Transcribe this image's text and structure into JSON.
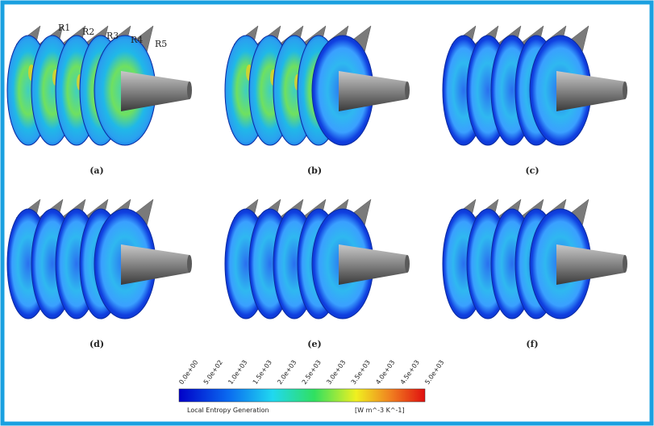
{
  "figure": {
    "panels": [
      {
        "label": "(a)"
      },
      {
        "label": "(b)"
      },
      {
        "label": "(c)"
      },
      {
        "label": "(d)"
      },
      {
        "label": "(e)"
      },
      {
        "label": "(f)"
      }
    ],
    "blade_rows": [
      "R1",
      "R2",
      "R3",
      "R4",
      "R5"
    ],
    "colorbar": {
      "ticks": [
        "0.0e+00",
        "5.0e+02",
        "1.0e+03",
        "1.5e+03",
        "2.0e+03",
        "2.5e+03",
        "3.0e+03",
        "3.5e+03",
        "4.0e+03",
        "4.5e+03",
        "5.0e+03"
      ],
      "title": "Local Entropy Generation",
      "unit": "[W m^-3 K^-1]"
    }
  }
}
